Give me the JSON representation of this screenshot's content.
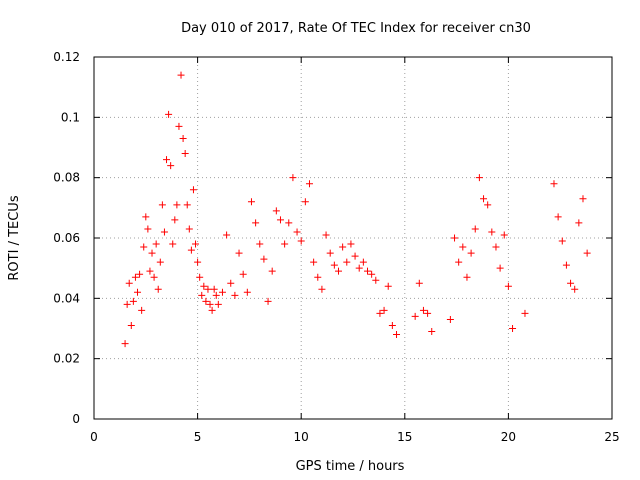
{
  "chart_data": {
    "type": "scatter",
    "title": "Day 010 of 2017, Rate Of TEC Index for receiver cn30",
    "xlabel": "GPS time / hours",
    "ylabel": "ROTI / TECUs",
    "xlim": [
      0,
      25
    ],
    "ylim": [
      0,
      0.12
    ],
    "x_ticks": [
      0,
      5,
      10,
      15,
      20,
      25
    ],
    "x_tick_labels": [
      "0",
      "5",
      "10",
      "15",
      "20",
      "25"
    ],
    "y_ticks": [
      0,
      0.02,
      0.04,
      0.06,
      0.08,
      0.1,
      0.12
    ],
    "y_tick_labels": [
      "0",
      "0.02",
      "0.04",
      "0.06",
      "0.08",
      "0.1",
      "0.12"
    ],
    "grid": true,
    "legend": "none",
    "marker": "plus",
    "marker_color": "#ff0000",
    "series": [
      {
        "x": [
          1.5,
          1.6,
          1.7,
          1.8,
          1.9,
          2.0,
          2.1,
          2.2,
          2.3,
          2.4,
          2.5,
          2.6,
          2.7,
          2.8,
          2.9,
          3.0,
          3.1,
          3.2,
          3.3,
          3.4,
          3.5,
          3.6,
          3.7,
          3.8,
          3.9,
          4.0,
          4.1,
          4.2,
          4.3,
          4.4,
          4.5,
          4.6,
          4.7,
          4.8,
          4.9,
          5.0,
          5.1,
          5.2,
          5.3,
          5.4,
          5.5,
          5.6,
          5.7,
          5.8,
          5.9,
          6.0,
          6.2,
          6.4,
          6.6,
          6.8,
          7.0,
          7.2,
          7.4,
          7.6,
          7.8,
          8.0,
          8.2,
          8.4,
          8.6,
          8.8,
          9.0,
          9.2,
          9.4,
          9.6,
          9.8,
          10.0,
          10.2,
          10.4,
          10.6,
          10.8,
          11.0,
          11.2,
          11.4,
          11.6,
          11.8,
          12.0,
          12.2,
          12.4,
          12.6,
          12.8,
          13.0,
          13.2,
          13.4,
          13.6,
          13.8,
          14.0,
          14.2,
          14.4,
          14.6,
          15.5,
          15.7,
          15.9,
          16.1,
          16.3,
          17.2,
          17.4,
          17.6,
          17.8,
          18.0,
          18.2,
          18.4,
          18.6,
          18.8,
          19.0,
          19.2,
          19.4,
          19.6,
          19.8,
          20.0,
          20.2,
          20.8,
          22.2,
          22.4,
          22.6,
          22.8,
          23.0,
          23.2,
          23.4,
          23.6,
          23.8
        ],
        "y": [
          0.025,
          0.038,
          0.045,
          0.031,
          0.039,
          0.047,
          0.042,
          0.048,
          0.036,
          0.057,
          0.067,
          0.063,
          0.049,
          0.055,
          0.047,
          0.058,
          0.043,
          0.052,
          0.071,
          0.062,
          0.086,
          0.101,
          0.084,
          0.058,
          0.066,
          0.071,
          0.097,
          0.114,
          0.093,
          0.088,
          0.071,
          0.063,
          0.056,
          0.076,
          0.058,
          0.052,
          0.047,
          0.041,
          0.044,
          0.039,
          0.043,
          0.038,
          0.036,
          0.043,
          0.041,
          0.038,
          0.042,
          0.061,
          0.045,
          0.041,
          0.055,
          0.048,
          0.042,
          0.072,
          0.065,
          0.058,
          0.053,
          0.039,
          0.049,
          0.069,
          0.066,
          0.058,
          0.065,
          0.08,
          0.062,
          0.059,
          0.072,
          0.078,
          0.052,
          0.047,
          0.043,
          0.061,
          0.055,
          0.051,
          0.049,
          0.057,
          0.052,
          0.058,
          0.054,
          0.05,
          0.052,
          0.049,
          0.048,
          0.046,
          0.035,
          0.036,
          0.044,
          0.031,
          0.028,
          0.034,
          0.045,
          0.036,
          0.035,
          0.029,
          0.033,
          0.06,
          0.052,
          0.057,
          0.047,
          0.055,
          0.063,
          0.08,
          0.073,
          0.071,
          0.062,
          0.057,
          0.05,
          0.061,
          0.044,
          0.03,
          0.035,
          0.078,
          0.067,
          0.059,
          0.051,
          0.045,
          0.043,
          0.065,
          0.073,
          0.055
        ]
      }
    ]
  }
}
